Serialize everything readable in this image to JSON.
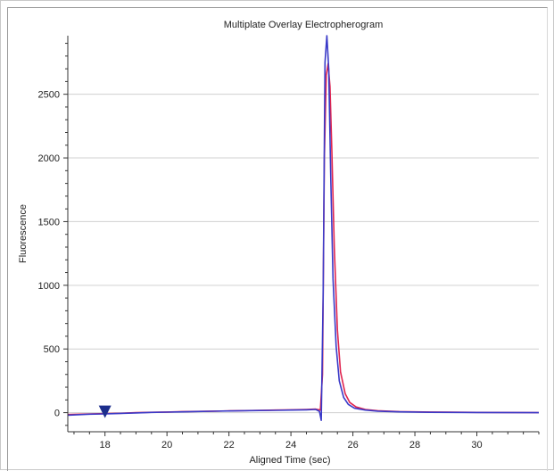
{
  "chart_data": {
    "type": "line",
    "title": "Multiplate Overlay Electropherogram",
    "xlabel": "Aligned Time (sec)",
    "ylabel": "Fluorescence",
    "xlim": [
      16.8,
      32.0
    ],
    "ylim": [
      -150,
      2960
    ],
    "x_ticks": [
      18,
      20,
      22,
      24,
      26,
      28,
      30
    ],
    "y_ticks": [
      0,
      500,
      1000,
      1500,
      2000,
      2500
    ],
    "grid": "horizontal",
    "marker": {
      "shape": "triangle-down",
      "x": 18,
      "y": 0,
      "color": "#1c2e8c"
    },
    "series": [
      {
        "color": "#e0244f",
        "x": [
          16.8,
          17.5,
          18.0,
          18.5,
          19.0,
          19.5,
          20.0,
          20.5,
          21.0,
          21.5,
          22.0,
          22.5,
          23.0,
          23.5,
          24.0,
          24.5,
          24.8,
          24.95,
          25.02,
          25.08,
          25.14,
          25.2,
          25.26,
          25.32,
          25.4,
          25.5,
          25.6,
          25.75,
          25.9,
          26.1,
          26.4,
          26.8,
          27.5,
          28.5,
          30.0,
          32.0
        ],
        "y": [
          -15,
          -10,
          -8,
          -5,
          0,
          3,
          5,
          8,
          10,
          12,
          14,
          16,
          18,
          20,
          22,
          25,
          28,
          20,
          300,
          2000,
          2650,
          2740,
          2560,
          2050,
          1300,
          650,
          320,
          150,
          80,
          45,
          25,
          15,
          8,
          5,
          2,
          0
        ]
      },
      {
        "color": "#3a3ac8",
        "x": [
          16.8,
          17.5,
          18.0,
          18.5,
          19.0,
          19.5,
          20.0,
          20.5,
          21.0,
          21.5,
          22.0,
          22.5,
          23.0,
          23.5,
          24.0,
          24.5,
          24.8,
          24.92,
          24.98,
          25.04,
          25.1,
          25.16,
          25.22,
          25.28,
          25.36,
          25.46,
          25.56,
          25.7,
          25.85,
          26.05,
          26.4,
          26.8,
          27.5,
          28.5,
          30.0,
          32.0
        ],
        "y": [
          -20,
          -12,
          -10,
          -6,
          -2,
          2,
          4,
          6,
          9,
          11,
          13,
          15,
          17,
          18,
          20,
          22,
          25,
          10,
          -60,
          900,
          2750,
          2960,
          2700,
          1900,
          1050,
          520,
          250,
          120,
          65,
          35,
          20,
          12,
          6,
          3,
          1,
          0
        ]
      }
    ]
  }
}
